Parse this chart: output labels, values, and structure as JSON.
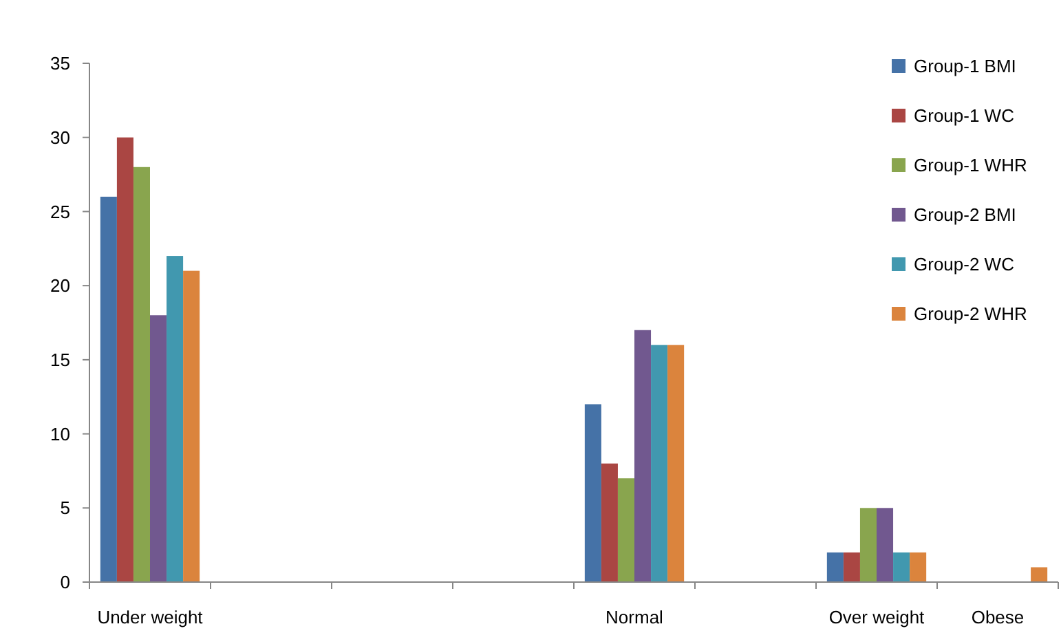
{
  "chart_data": {
    "type": "bar",
    "categories": [
      "Under weight",
      null,
      null,
      null,
      "Normal",
      null,
      "Over weight",
      "Obese"
    ],
    "series": [
      {
        "name": "Group-1 BMI",
        "color": "#4572a7",
        "values": [
          26,
          null,
          null,
          null,
          12,
          null,
          2,
          0
        ]
      },
      {
        "name": "Group-1 WC",
        "color": "#aa4643",
        "values": [
          30,
          null,
          null,
          null,
          8,
          null,
          2,
          0
        ]
      },
      {
        "name": "Group-1 WHR",
        "color": "#89a54e",
        "values": [
          28,
          null,
          null,
          null,
          7,
          null,
          5,
          0
        ]
      },
      {
        "name": "Group-2 BMI",
        "color": "#71588f",
        "values": [
          18,
          null,
          null,
          null,
          17,
          null,
          5,
          0
        ]
      },
      {
        "name": "Group-2 WC",
        "color": "#4198af",
        "values": [
          22,
          null,
          null,
          null,
          16,
          null,
          2,
          0
        ]
      },
      {
        "name": "Group-2 WHR",
        "color": "#db843d",
        "values": [
          21,
          null,
          null,
          null,
          16,
          null,
          2,
          1
        ]
      }
    ],
    "ylim": [
      0,
      35
    ],
    "yticks": [
      0,
      5,
      10,
      15,
      20,
      25,
      30,
      35
    ],
    "grid": false,
    "legend": "top right"
  }
}
